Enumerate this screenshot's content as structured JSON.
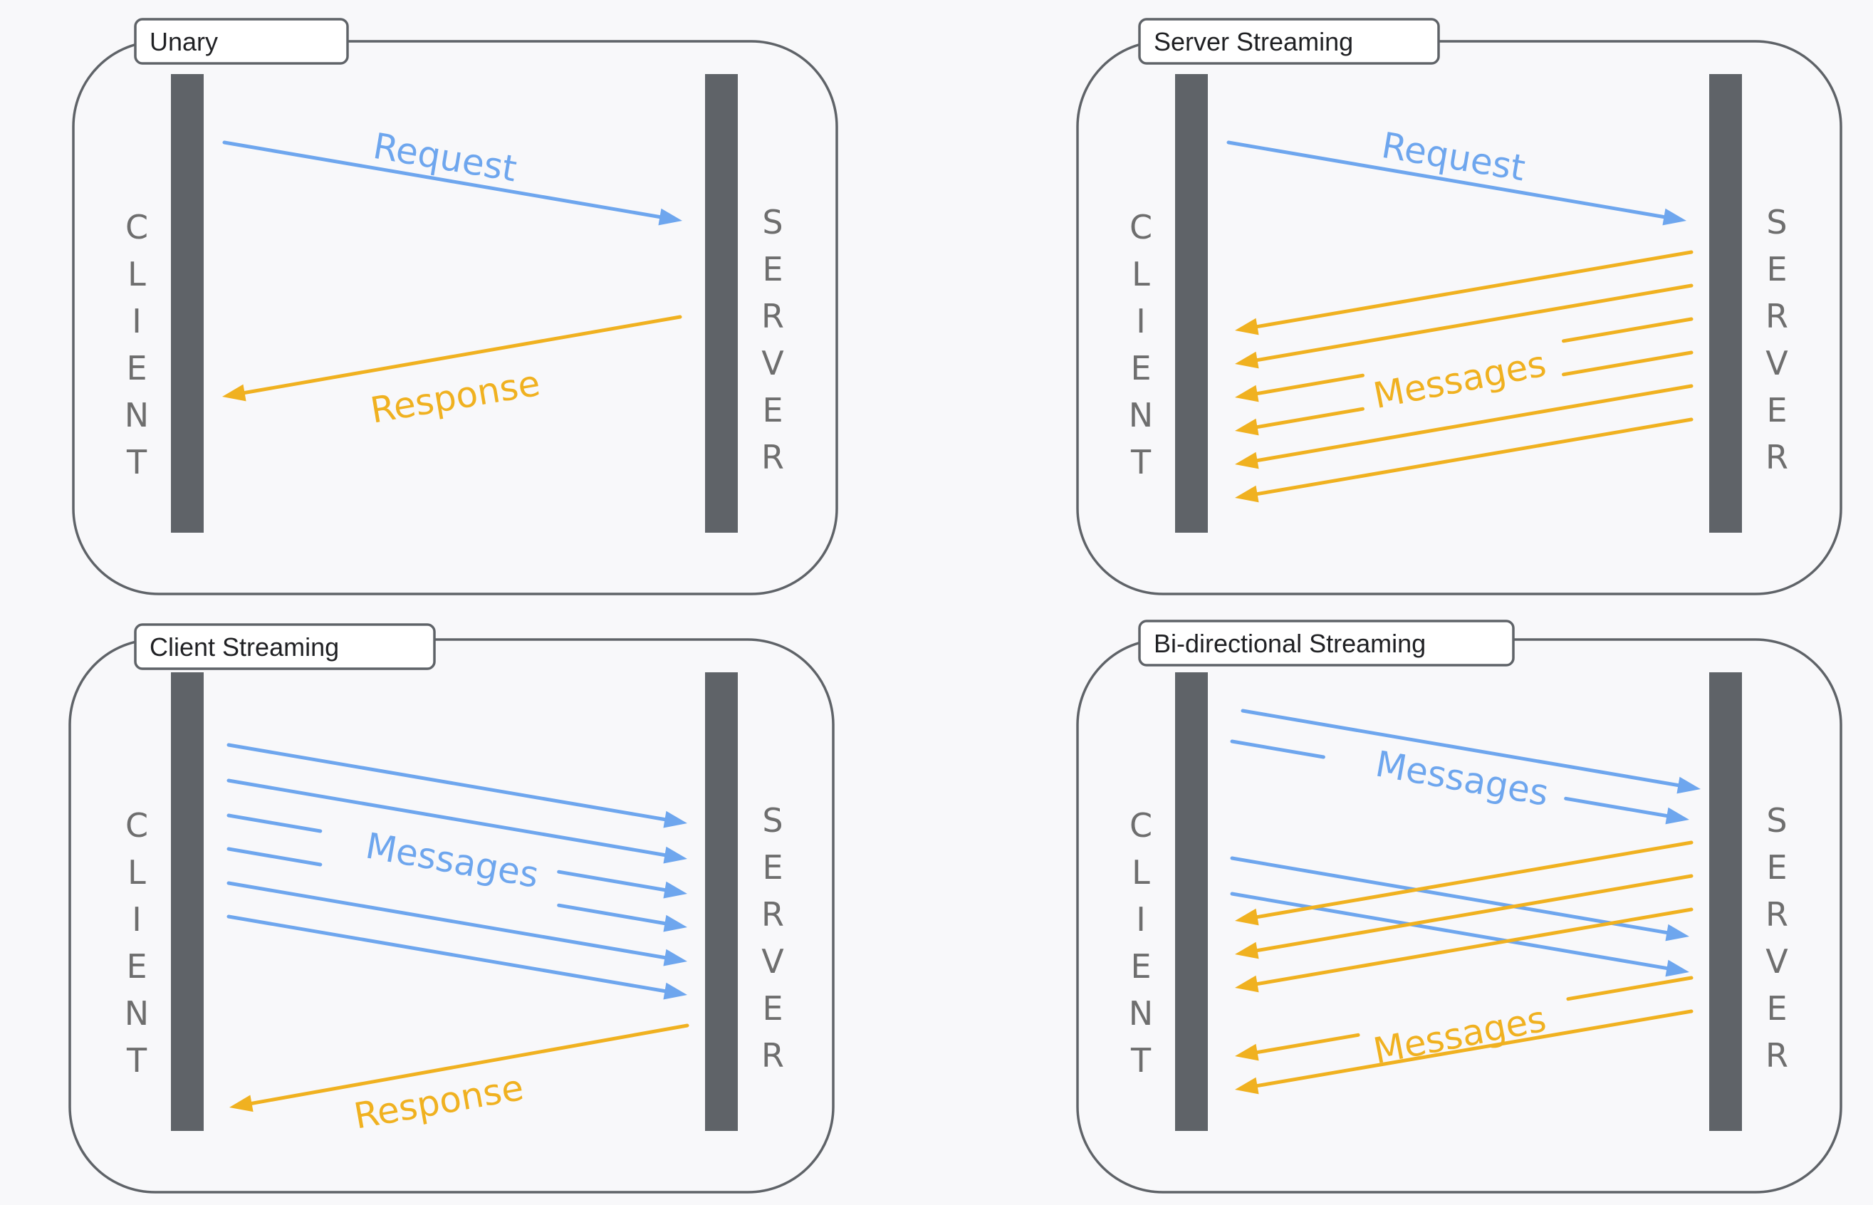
{
  "colors": {
    "request_blue": "#6ea6ee",
    "response_orange": "#f0b120",
    "lifeline": "#5f6368",
    "border": "#5f6368",
    "side_letters": "#6e6e6e",
    "background": "#f8f8fa"
  },
  "panels": [
    {
      "title": "Unary",
      "client_label": "CLIENT",
      "server_label": "SERVER",
      "labels": [
        {
          "text": "Request",
          "color": "blue"
        },
        {
          "text": "Response",
          "color": "orange"
        }
      ]
    },
    {
      "title": "Server Streaming",
      "client_label": "CLIENT",
      "server_label": "SERVER",
      "labels": [
        {
          "text": "Request",
          "color": "blue"
        },
        {
          "text": "Messages",
          "color": "orange"
        }
      ]
    },
    {
      "title": "Client Streaming",
      "client_label": "CLIENT",
      "server_label": "SERVER",
      "labels": [
        {
          "text": "Messages",
          "color": "blue"
        },
        {
          "text": "Response",
          "color": "orange"
        }
      ]
    },
    {
      "title": "Bi-directional Streaming",
      "client_label": "CLIENT",
      "server_label": "SERVER",
      "labels": [
        {
          "text": "Messages",
          "color": "blue"
        },
        {
          "text": "Messages",
          "color": "orange"
        }
      ]
    }
  ]
}
